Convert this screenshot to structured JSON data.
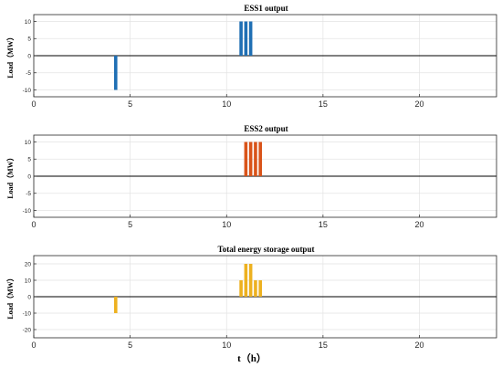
{
  "xlabel": "t（h）",
  "chart_data": [
    {
      "type": "bar",
      "title": "ESS1 output",
      "ylabel": "Load（MW）",
      "xlim": [
        0,
        24
      ],
      "ylim": [
        -12,
        12
      ],
      "xticks": [
        0,
        5,
        10,
        15,
        20
      ],
      "yticks": [
        -10,
        -5,
        0,
        5,
        10
      ],
      "grid": true,
      "color": "#1f6fb4",
      "x": [
        4.25,
        10.75,
        11.0,
        11.25
      ],
      "values": [
        -10,
        10,
        10,
        10
      ]
    },
    {
      "type": "bar",
      "title": "ESS2 output",
      "ylabel": "Load（MW）",
      "xlim": [
        0,
        24
      ],
      "ylim": [
        -12,
        12
      ],
      "xticks": [
        0,
        5,
        10,
        15,
        20
      ],
      "yticks": [
        -10,
        -5,
        0,
        5,
        10
      ],
      "grid": true,
      "color": "#d95319",
      "x": [
        11.0,
        11.25,
        11.5,
        11.75
      ],
      "values": [
        10,
        10,
        10,
        10
      ]
    },
    {
      "type": "bar",
      "title": "Total energy storage output",
      "ylabel": "Load（MW）",
      "xlim": [
        0,
        24
      ],
      "ylim": [
        -25,
        25
      ],
      "xticks": [
        0,
        5,
        10,
        15,
        20
      ],
      "yticks": [
        -20,
        -10,
        0,
        10,
        20
      ],
      "grid": true,
      "color": "#edb120",
      "x": [
        4.25,
        10.75,
        11.0,
        11.25,
        11.5,
        11.75
      ],
      "values": [
        -10,
        10,
        20,
        20,
        10,
        10
      ]
    }
  ]
}
